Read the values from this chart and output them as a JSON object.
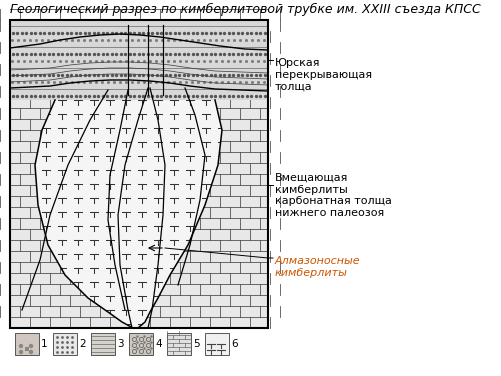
{
  "title": "Геологический разрез по кимберлитовой трубке им. XXIII съезда КПСС",
  "title_fontsize": 9.0,
  "title_style": "italic",
  "fig_width": 5.02,
  "fig_height": 3.76,
  "bg_color": "#ffffff",
  "label_jurassic": "Юрская\nперекрывающая\nтолща",
  "label_carbonate": "Вмещающая\nкимберлиты\nкарбонатная толща\nнижнего палеозоя",
  "label_diamond": "Алмазоносные\nкимберлиты",
  "label_color_diamond": "#cc5500",
  "legend_nums": [
    "1",
    "2",
    "3",
    "4",
    "5",
    "6"
  ]
}
